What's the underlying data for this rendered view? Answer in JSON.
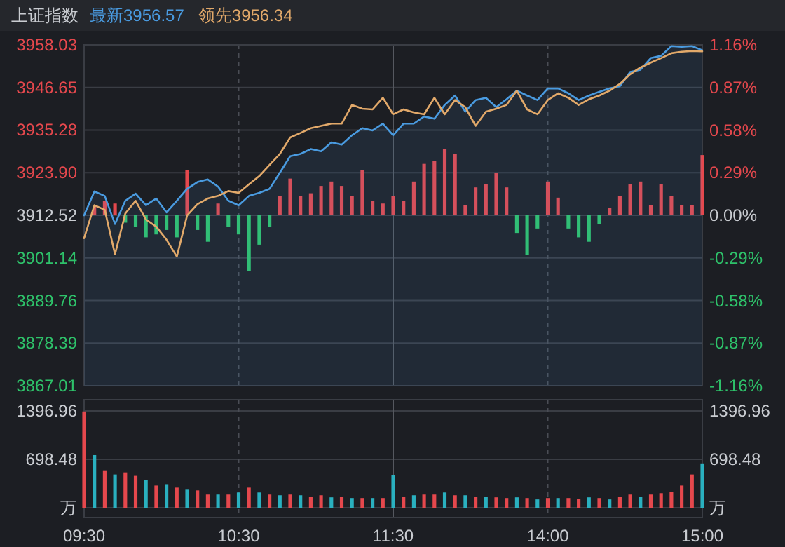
{
  "chart_data": [
    {
      "type": "line",
      "title": "上证指数",
      "legend": "top left",
      "grid": true,
      "tick_labels": "y",
      "categories": [
        null,
        null,
        null,
        null,
        null,
        null,
        null,
        null,
        null,
        null,
        null,
        null,
        null,
        null,
        null,
        null,
        null,
        null,
        null,
        null,
        null,
        null,
        null,
        null,
        null,
        null,
        null,
        null,
        null,
        null,
        null,
        null,
        null,
        null,
        null,
        null,
        null,
        null,
        null,
        null,
        null,
        null,
        null,
        null,
        null,
        null,
        null,
        null,
        null,
        null,
        null,
        null,
        null,
        null,
        null,
        null,
        null,
        null,
        null,
        null,
        null
      ],
      "ylim": [
        3867.01,
        3958.03
      ],
      "yticks": [
        3867.01,
        3878.39,
        3889.76,
        3901.14,
        3912.52,
        {
          "value": 3923.9,
          "label": "3923.90"
        },
        3935.28,
        3946.65,
        3958.03
      ],
      "y2lim": [
        -1.16,
        1.16
      ],
      "y2ticks": [
        {
          "value": -1.16,
          "label": "-1.16%"
        },
        {
          "value": -0.87,
          "label": "-0.87%"
        },
        {
          "value": -0.58,
          "label": "-0.58%"
        },
        {
          "value": -0.29,
          "label": "-0.29%"
        },
        {
          "value": 0,
          "label": "0.00%"
        },
        {
          "value": 0.29,
          "label": "0.29%"
        },
        {
          "value": 0.58,
          "label": "0.58%"
        },
        {
          "value": 0.87,
          "label": "0.87%"
        },
        {
          "value": 1.16,
          "label": "1.16%"
        }
      ],
      "series": [
        {
          "type": "bar",
          "axis": "y2",
          "values": [
            null,
            0.06,
            0.1,
            0.08,
            -0.05,
            -0.08,
            -0.15,
            -0.13,
            -0.1,
            -0.15,
            0.31,
            -0.1,
            -0.18,
            0.08,
            -0.08,
            -0.13,
            -0.38,
            -0.2,
            -0.08,
            0.13,
            0.25,
            0.13,
            0.15,
            0.2,
            0.23,
            0.2,
            0.13,
            0.31,
            0.1,
            0.08,
            0.13,
            0.1,
            0.23,
            0.35,
            0.37,
            0.45,
            0.42,
            0.07,
            0.19,
            0.21,
            0.29,
            0.19,
            -0.12,
            -0.27,
            -0.09,
            0.23,
            0.12,
            -0.09,
            -0.15,
            -0.18,
            -0.06,
            0.05,
            0.13,
            0.21,
            0.23,
            0.07,
            0.21,
            0.13,
            0.07,
            0.07,
            0.41
          ],
          "colors": [
            null,
            "#e5484d",
            "#e5484d",
            "#e5484d",
            "#2ec26a",
            "#2ec26a",
            "#2ec26a",
            "#2ec26a",
            "#2ec26a",
            "#2ec26a",
            "#e5484d",
            "#2ec26a",
            "#2ec26a",
            "#e5484d",
            "#2ec26a",
            "#2ec26a",
            "#2ec26a",
            "#2ec26a",
            "#2ec26a",
            "#e5484d",
            "#e5484d",
            "#e5484d",
            "#e5484d",
            "#e5484d",
            "#e5484d",
            "#e5484d",
            "#e5484d",
            "#e5484d",
            "#e5484d",
            "#e5484d",
            "#e5484d",
            "#e5484d",
            "#e5484d",
            "#e5484d",
            "#e5484d",
            "#e5484d",
            "#e5484d",
            "#e5484d",
            "#e5484d",
            "#e5484d",
            "#e5484d",
            "#e5484d",
            "#2ec26a",
            "#2ec26a",
            "#2ec26a",
            "#e5484d",
            "#e5484d",
            "#2ec26a",
            "#2ec26a",
            "#2ec26a",
            "#2ec26a",
            "#e5484d",
            "#e5484d",
            "#e5484d",
            "#e5484d",
            "#e5484d",
            "#e5484d",
            "#e5484d",
            "#e5484d",
            "#e5484d",
            "#e5484d"
          ]
        },
        {
          "type": "area",
          "name": "最新3956.57",
          "color": "#4a9be0",
          "values": [
            3912.5,
            3918.9,
            3917.7,
            3910.2,
            3916.4,
            3918.3,
            3915.2,
            3917.0,
            3913.3,
            3916.4,
            3919.6,
            3921.4,
            3922.1,
            3920.2,
            3916.4,
            3915.2,
            3917.7,
            3918.5,
            3919.6,
            3923.9,
            3928.3,
            3928.9,
            3930.2,
            3929.6,
            3932.0,
            3931.4,
            3933.9,
            3935.8,
            3935.2,
            3937.0,
            3933.9,
            3937.0,
            3937.0,
            3938.9,
            3938.3,
            3942.0,
            3944.5,
            3940.2,
            3943.3,
            3943.9,
            3941.4,
            3943.5,
            3945.8,
            3944.5,
            3943.3,
            3946.4,
            3946.4,
            3945.1,
            3943.3,
            3944.5,
            3945.5,
            3946.4,
            3947.0,
            3950.8,
            3951.4,
            3954.5,
            3955.1,
            3957.7,
            3957.5,
            3957.7,
            3956.6
          ]
        },
        {
          "name": "领先3956.34",
          "color": "#e2a96a",
          "values": [
            3906.4,
            3915.2,
            3914.0,
            3902.1,
            3913.0,
            3916.4,
            3911.4,
            3909.5,
            3906.0,
            3901.5,
            3912.5,
            3915.5,
            3917.0,
            3917.7,
            3919.0,
            3918.5,
            3920.8,
            3923.0,
            3926.0,
            3928.9,
            3933.3,
            3934.5,
            3935.8,
            3936.4,
            3937.0,
            3937.0,
            3942.0,
            3941.0,
            3940.8,
            3943.9,
            3939.5,
            3940.8,
            3940.0,
            3939.5,
            3943.9,
            3939.5,
            3943.3,
            3941.4,
            3936.4,
            3940.2,
            3941.0,
            3942.0,
            3945.8,
            3940.8,
            3939.5,
            3943.3,
            3945.1,
            3943.9,
            3942.0,
            3943.5,
            3944.5,
            3945.8,
            3947.6,
            3950.2,
            3952.0,
            3953.3,
            3954.5,
            3955.8,
            3956.2,
            3956.4,
            3956.3
          ]
        }
      ]
    },
    {
      "type": "bar",
      "grid": true,
      "categories": [
        "09:30",
        null,
        null,
        null,
        null,
        null,
        null,
        null,
        null,
        null,
        null,
        null,
        null,
        null,
        null,
        "10:30",
        null,
        null,
        null,
        null,
        null,
        null,
        null,
        null,
        null,
        null,
        null,
        null,
        null,
        null,
        "11:30",
        null,
        null,
        null,
        null,
        null,
        null,
        null,
        null,
        null,
        null,
        null,
        null,
        null,
        null,
        "14:00",
        null,
        null,
        null,
        null,
        null,
        null,
        null,
        null,
        null,
        null,
        null,
        null,
        null,
        null,
        "15:00"
      ],
      "ylim": [
        0,
        1560
      ],
      "yticks": [
        {
          "value": 0,
          "label": "万"
        },
        698.48,
        1396.96
      ],
      "y2lim": [
        0,
        1560
      ],
      "y2ticks": [
        {
          "value": 0,
          "label": "万"
        },
        698.48,
        1396.96
      ],
      "series": [
        {
          "values": [
            1390,
            760,
            540,
            480,
            510,
            460,
            400,
            320,
            340,
            290,
            260,
            250,
            190,
            190,
            190,
            220,
            290,
            220,
            190,
            180,
            190,
            180,
            160,
            180,
            150,
            160,
            140,
            140,
            140,
            140,
            470,
            160,
            180,
            190,
            190,
            220,
            180,
            180,
            160,
            160,
            150,
            140,
            150,
            140,
            120,
            140,
            140,
            140,
            130,
            150,
            140,
            120,
            160,
            190,
            160,
            190,
            210,
            230,
            320,
            480,
            640
          ],
          "colors": [
            "#e5484d",
            "#2ab0bf",
            "#e5484d",
            "#2ab0bf",
            "#e5484d",
            "#e5484d",
            "#2ab0bf",
            "#e5484d",
            "#2ab0bf",
            "#e5484d",
            "#2ab0bf",
            "#e5484d",
            "#e5484d",
            "#2ab0bf",
            "#e5484d",
            "#2ab0bf",
            "#e5484d",
            "#2ab0bf",
            "#e5484d",
            "#2ab0bf",
            "#e5484d",
            "#2ab0bf",
            "#e5484d",
            "#e5484d",
            "#2ab0bf",
            "#e5484d",
            "#2ab0bf",
            "#e5484d",
            "#2ab0bf",
            "#e5484d",
            "#2ab0bf",
            "#e5484d",
            "#2ab0bf",
            "#e5484d",
            "#e5484d",
            "#2ab0bf",
            "#e5484d",
            "#2ab0bf",
            "#e5484d",
            "#2ab0bf",
            "#e5484d",
            "#e5484d",
            "#2ab0bf",
            "#e5484d",
            "#2ab0bf",
            "#e5484d",
            "#2ab0bf",
            "#e5484d",
            "#e5484d",
            "#2ab0bf",
            "#e5484d",
            "#2ab0bf",
            "#e5484d",
            "#e5484d",
            "#2ab0bf",
            "#e5484d",
            "#e5484d",
            "#e5484d",
            "#e5484d",
            "#e5484d",
            "#2ab0bf"
          ]
        }
      ]
    }
  ]
}
